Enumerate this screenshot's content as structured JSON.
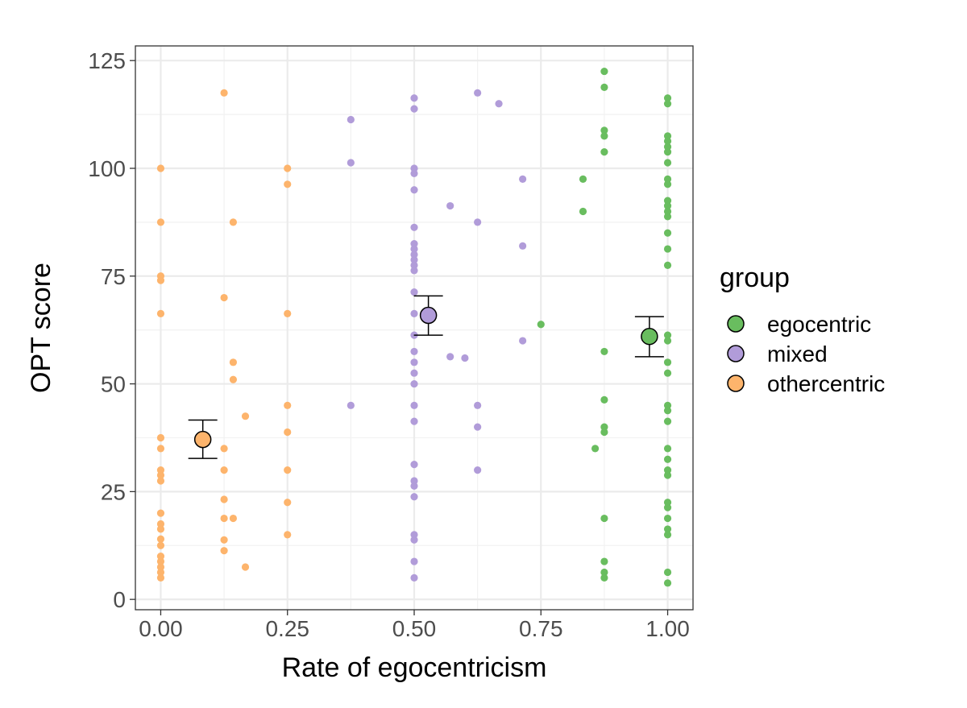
{
  "chart_data": {
    "type": "scatter",
    "xlabel": "Rate of egocentricism",
    "ylabel": "OPT score",
    "xlim": [
      -0.05,
      1.05
    ],
    "ylim": [
      -2.4,
      128.4
    ],
    "xticks": [
      0,
      0.25,
      0.5,
      0.75,
      1
    ],
    "xtick_labels": [
      "0.00",
      "0.25",
      "0.50",
      "0.75",
      "1.00"
    ],
    "yticks": [
      0,
      25,
      50,
      75,
      100,
      125
    ],
    "ytick_labels": [
      "0",
      "25",
      "50",
      "75",
      "100",
      "125"
    ],
    "grid": true,
    "legend": {
      "title": "group",
      "placement": "right"
    },
    "series": [
      {
        "name": "egocentric",
        "color": "#69bd5f",
        "points": [
          [
            0.75,
            63.8
          ],
          [
            0.833,
            97.5
          ],
          [
            0.833,
            90
          ],
          [
            0.857,
            35
          ],
          [
            0.875,
            122.5
          ],
          [
            0.875,
            118.8
          ],
          [
            0.875,
            108.8
          ],
          [
            0.875,
            107.5
          ],
          [
            0.875,
            103.8
          ],
          [
            0.875,
            57.5
          ],
          [
            0.875,
            46.3
          ],
          [
            0.875,
            40
          ],
          [
            0.875,
            38.8
          ],
          [
            0.875,
            18.8
          ],
          [
            0.875,
            8.8
          ],
          [
            0.875,
            6.3
          ],
          [
            0.875,
            5
          ],
          [
            1,
            116.3
          ],
          [
            1,
            115
          ],
          [
            1,
            107.5
          ],
          [
            1,
            106.3
          ],
          [
            1,
            105
          ],
          [
            1,
            103.8
          ],
          [
            1,
            101.3
          ],
          [
            1,
            97.5
          ],
          [
            1,
            96.3
          ],
          [
            1,
            92.5
          ],
          [
            1,
            91.3
          ],
          [
            1,
            90
          ],
          [
            1,
            88.8
          ],
          [
            1,
            85
          ],
          [
            1,
            81.3
          ],
          [
            1,
            77.5
          ],
          [
            1,
            61.3
          ],
          [
            1,
            60
          ],
          [
            1,
            55
          ],
          [
            1,
            52.5
          ],
          [
            1,
            45
          ],
          [
            1,
            43.8
          ],
          [
            1,
            41.3
          ],
          [
            1,
            35
          ],
          [
            1,
            32.5
          ],
          [
            1,
            30
          ],
          [
            1,
            28.8
          ],
          [
            1,
            22.5
          ],
          [
            1,
            21.3
          ],
          [
            1,
            18.8
          ],
          [
            1,
            16.3
          ],
          [
            1,
            15
          ],
          [
            1,
            6.3
          ],
          [
            1,
            3.8
          ]
        ],
        "mean": {
          "x": 0.964,
          "y": 61,
          "lower": 56.3,
          "upper": 65.6
        }
      },
      {
        "name": "mixed",
        "color": "#b19cd9",
        "points": [
          [
            0.375,
            111.3
          ],
          [
            0.375,
            101.3
          ],
          [
            0.375,
            45
          ],
          [
            0.5,
            116.3
          ],
          [
            0.5,
            113.8
          ],
          [
            0.5,
            100
          ],
          [
            0.5,
            98.8
          ],
          [
            0.5,
            95
          ],
          [
            0.5,
            86.3
          ],
          [
            0.5,
            82.5
          ],
          [
            0.5,
            81.3
          ],
          [
            0.5,
            80
          ],
          [
            0.5,
            78.8
          ],
          [
            0.5,
            77.5
          ],
          [
            0.5,
            76.3
          ],
          [
            0.5,
            71.3
          ],
          [
            0.5,
            66.3
          ],
          [
            0.5,
            61.3
          ],
          [
            0.5,
            57.5
          ],
          [
            0.5,
            55
          ],
          [
            0.5,
            52.5
          ],
          [
            0.5,
            50
          ],
          [
            0.5,
            45
          ],
          [
            0.5,
            41.3
          ],
          [
            0.5,
            31.3
          ],
          [
            0.5,
            27.5
          ],
          [
            0.5,
            26.3
          ],
          [
            0.5,
            23.8
          ],
          [
            0.5,
            15
          ],
          [
            0.5,
            13.8
          ],
          [
            0.5,
            8.8
          ],
          [
            0.5,
            5
          ],
          [
            0.571,
            91.3
          ],
          [
            0.571,
            56.3
          ],
          [
            0.6,
            56
          ],
          [
            0.625,
            117.5
          ],
          [
            0.625,
            87.5
          ],
          [
            0.625,
            45
          ],
          [
            0.625,
            40
          ],
          [
            0.625,
            30
          ],
          [
            0.667,
            115
          ],
          [
            0.714,
            97.5
          ],
          [
            0.714,
            82
          ],
          [
            0.714,
            60
          ]
        ],
        "mean": {
          "x": 0.528,
          "y": 65.9,
          "lower": 61.3,
          "upper": 70.4
        }
      },
      {
        "name": "othercentric",
        "color": "#fdb46c",
        "points": [
          [
            0,
            100
          ],
          [
            0,
            87.5
          ],
          [
            0,
            75
          ],
          [
            0,
            74
          ],
          [
            0,
            66.3
          ],
          [
            0,
            37.5
          ],
          [
            0,
            35
          ],
          [
            0,
            30
          ],
          [
            0,
            28.8
          ],
          [
            0,
            27.5
          ],
          [
            0,
            20
          ],
          [
            0,
            17.5
          ],
          [
            0,
            16.3
          ],
          [
            0,
            14
          ],
          [
            0,
            12.5
          ],
          [
            0,
            10
          ],
          [
            0,
            8.8
          ],
          [
            0,
            7.5
          ],
          [
            0,
            6.3
          ],
          [
            0,
            5
          ],
          [
            0.125,
            117.5
          ],
          [
            0.125,
            70
          ],
          [
            0.125,
            35
          ],
          [
            0.125,
            30
          ],
          [
            0.125,
            23.2
          ],
          [
            0.125,
            18.8
          ],
          [
            0.125,
            13.8
          ],
          [
            0.125,
            11.3
          ],
          [
            0.143,
            87.5
          ],
          [
            0.143,
            55
          ],
          [
            0.143,
            51
          ],
          [
            0.143,
            18.8
          ],
          [
            0.167,
            42.5
          ],
          [
            0.167,
            7.5
          ],
          [
            0.25,
            100
          ],
          [
            0.25,
            96.3
          ],
          [
            0.25,
            66.3
          ],
          [
            0.25,
            45
          ],
          [
            0.25,
            38.8
          ],
          [
            0.25,
            30
          ],
          [
            0.25,
            22.5
          ],
          [
            0.25,
            15
          ]
        ],
        "mean": {
          "x": 0.083,
          "y": 37.1,
          "lower": 32.7,
          "upper": 41.6
        }
      }
    ]
  }
}
